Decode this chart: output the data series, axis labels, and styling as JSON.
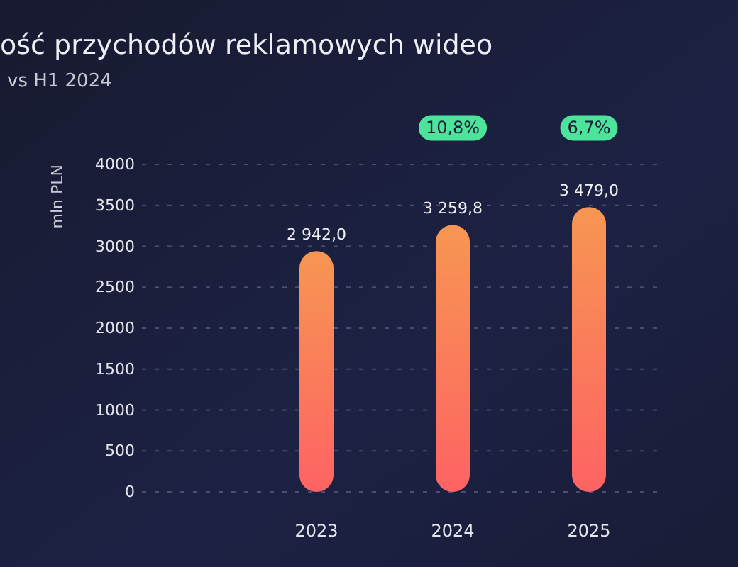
{
  "chart_data": {
    "type": "bar",
    "title": "ość przychodów reklamowych wideo",
    "subtitle": "vs H1 2024",
    "ylabel": "mln PLN",
    "categories": [
      "2023",
      "2024",
      "2025"
    ],
    "series": [
      {
        "color": "#f8845c",
        "values": [
          2942.0,
          3259.8,
          3479.0
        ]
      }
    ],
    "value_labels": [
      "2 942,0",
      "3 259,8",
      "3 479,0"
    ],
    "annotations": [
      "10,8%",
      "6,7%"
    ],
    "ylim": [
      0,
      4000
    ],
    "yticks": [
      0,
      500,
      1000,
      1500,
      2000,
      2500,
      3000,
      3500,
      4000
    ],
    "grid": "y"
  }
}
